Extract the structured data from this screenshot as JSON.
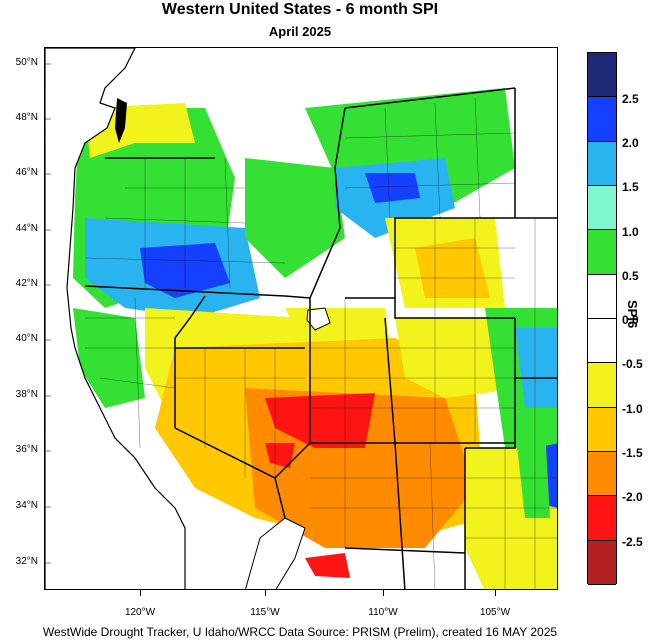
{
  "title": "Western United States - 6 month SPI",
  "subtitle": "April 2025",
  "footer": "WestWide Drought Tracker, U Idaho/WRCC Data Source: PRISM (Prelim), created 16 MAY 2025",
  "colorbar": {
    "title": "SPI6",
    "labels": [
      "2.5",
      "2.0",
      "1.5",
      "1.0",
      "0.5",
      "0.0",
      "-0.5",
      "-1.0",
      "-1.5",
      "-2.0",
      "-2.5"
    ],
    "colors": [
      "#1e2a78",
      "#1540ff",
      "#29b4f0",
      "#7ff5d0",
      "#34e034",
      "#ffffff",
      "#ffffff",
      "#f2f21c",
      "#ffc800",
      "#ff8c00",
      "#ff1414",
      "#b22222"
    ]
  },
  "axes": {
    "lat_labels": [
      "50°N",
      "48°N",
      "46°N",
      "44°N",
      "42°N",
      "40°N",
      "38°N",
      "36°N",
      "34°N",
      "32°N"
    ],
    "lon_labels": [
      "120°W",
      "115°W",
      "110°W",
      "105°W"
    ]
  }
}
